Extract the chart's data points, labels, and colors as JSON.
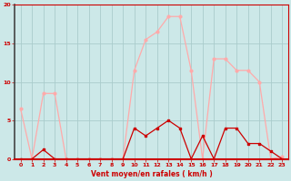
{
  "x": [
    0,
    1,
    2,
    3,
    4,
    5,
    6,
    7,
    8,
    9,
    10,
    11,
    12,
    13,
    14,
    15,
    16,
    17,
    18,
    19,
    20,
    21,
    22,
    23
  ],
  "y_mean": [
    0,
    0,
    1.2,
    0,
    0,
    0,
    0,
    0,
    0,
    0,
    4,
    3,
    4,
    5,
    4,
    0,
    3,
    0,
    4,
    4,
    2,
    2,
    1,
    0
  ],
  "y_gust": [
    6.5,
    0,
    8.5,
    8.5,
    0,
    0,
    0,
    0,
    0,
    0,
    11.5,
    15.5,
    16.5,
    18.5,
    18.5,
    11.5,
    0,
    13,
    13,
    11.5,
    11.5,
    10,
    0,
    0.3
  ],
  "bg_color": "#cce8e8",
  "grid_color": "#aacccc",
  "line_color_mean": "#cc0000",
  "line_color_gust": "#ffaaaa",
  "xlabel": "Vent moyen/en rafales ( km/h )",
  "ylim": [
    0,
    20
  ],
  "xlim": [
    -0.5,
    23.5
  ],
  "yticks": [
    0,
    5,
    10,
    15,
    20
  ],
  "xticks": [
    0,
    1,
    2,
    3,
    4,
    5,
    6,
    7,
    8,
    9,
    10,
    11,
    12,
    13,
    14,
    15,
    16,
    17,
    18,
    19,
    20,
    21,
    22,
    23
  ],
  "spine_color": "#cc0000",
  "left_spine_color": "#444444"
}
